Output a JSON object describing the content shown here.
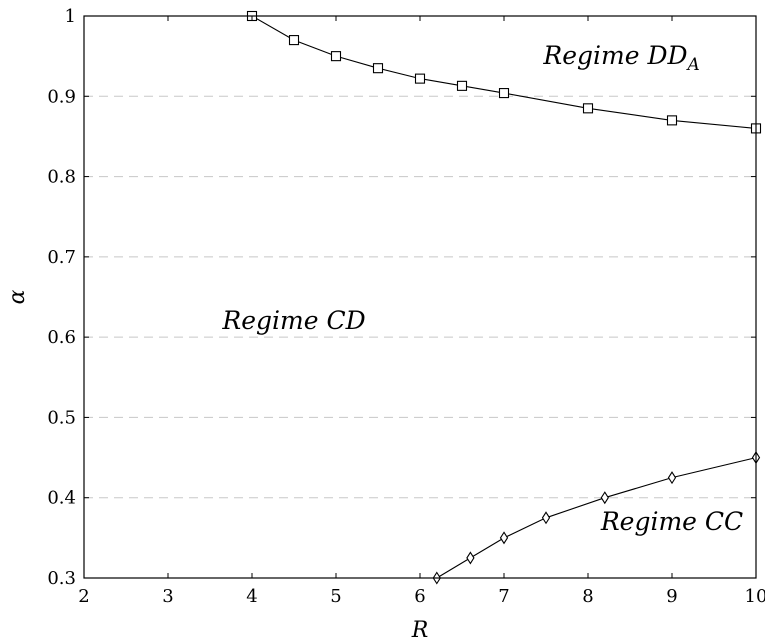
{
  "chart_data": {
    "type": "line",
    "xlabel": "R",
    "ylabel": "α",
    "xlim": [
      2,
      10
    ],
    "ylim": [
      0.3,
      1.0
    ],
    "xticks": [
      2,
      3,
      4,
      5,
      6,
      7,
      8,
      9,
      10
    ],
    "yticks": [
      0.3,
      0.4,
      0.5,
      0.6,
      0.7,
      0.8,
      0.9,
      1
    ],
    "ytick_labels": [
      "0.3",
      "0.4",
      "0.5",
      "0.6",
      "0.7",
      "0.8",
      "0.9",
      "1"
    ],
    "grid": "horizontal dashed",
    "series": [
      {
        "marker": "square",
        "x": [
          4,
          4.5,
          5,
          5.5,
          6,
          6.5,
          7,
          8,
          9,
          10
        ],
        "y": [
          1.0,
          0.97,
          0.95,
          0.935,
          0.922,
          0.913,
          0.904,
          0.885,
          0.87,
          0.86
        ]
      },
      {
        "marker": "diamond",
        "x": [
          6.2,
          6.6,
          7,
          7.5,
          8.2,
          9,
          10
        ],
        "y": [
          0.3,
          0.325,
          0.35,
          0.375,
          0.4,
          0.425,
          0.45
        ]
      }
    ],
    "annotations": [
      {
        "base": "Regime DD",
        "sub": "A",
        "x": 8.4,
        "y": 0.94
      },
      {
        "base": "Regime CD",
        "sub": "",
        "x": 4.5,
        "y": 0.61
      },
      {
        "base": "Regime CC",
        "sub": "",
        "x": 9.0,
        "y": 0.36
      }
    ]
  }
}
